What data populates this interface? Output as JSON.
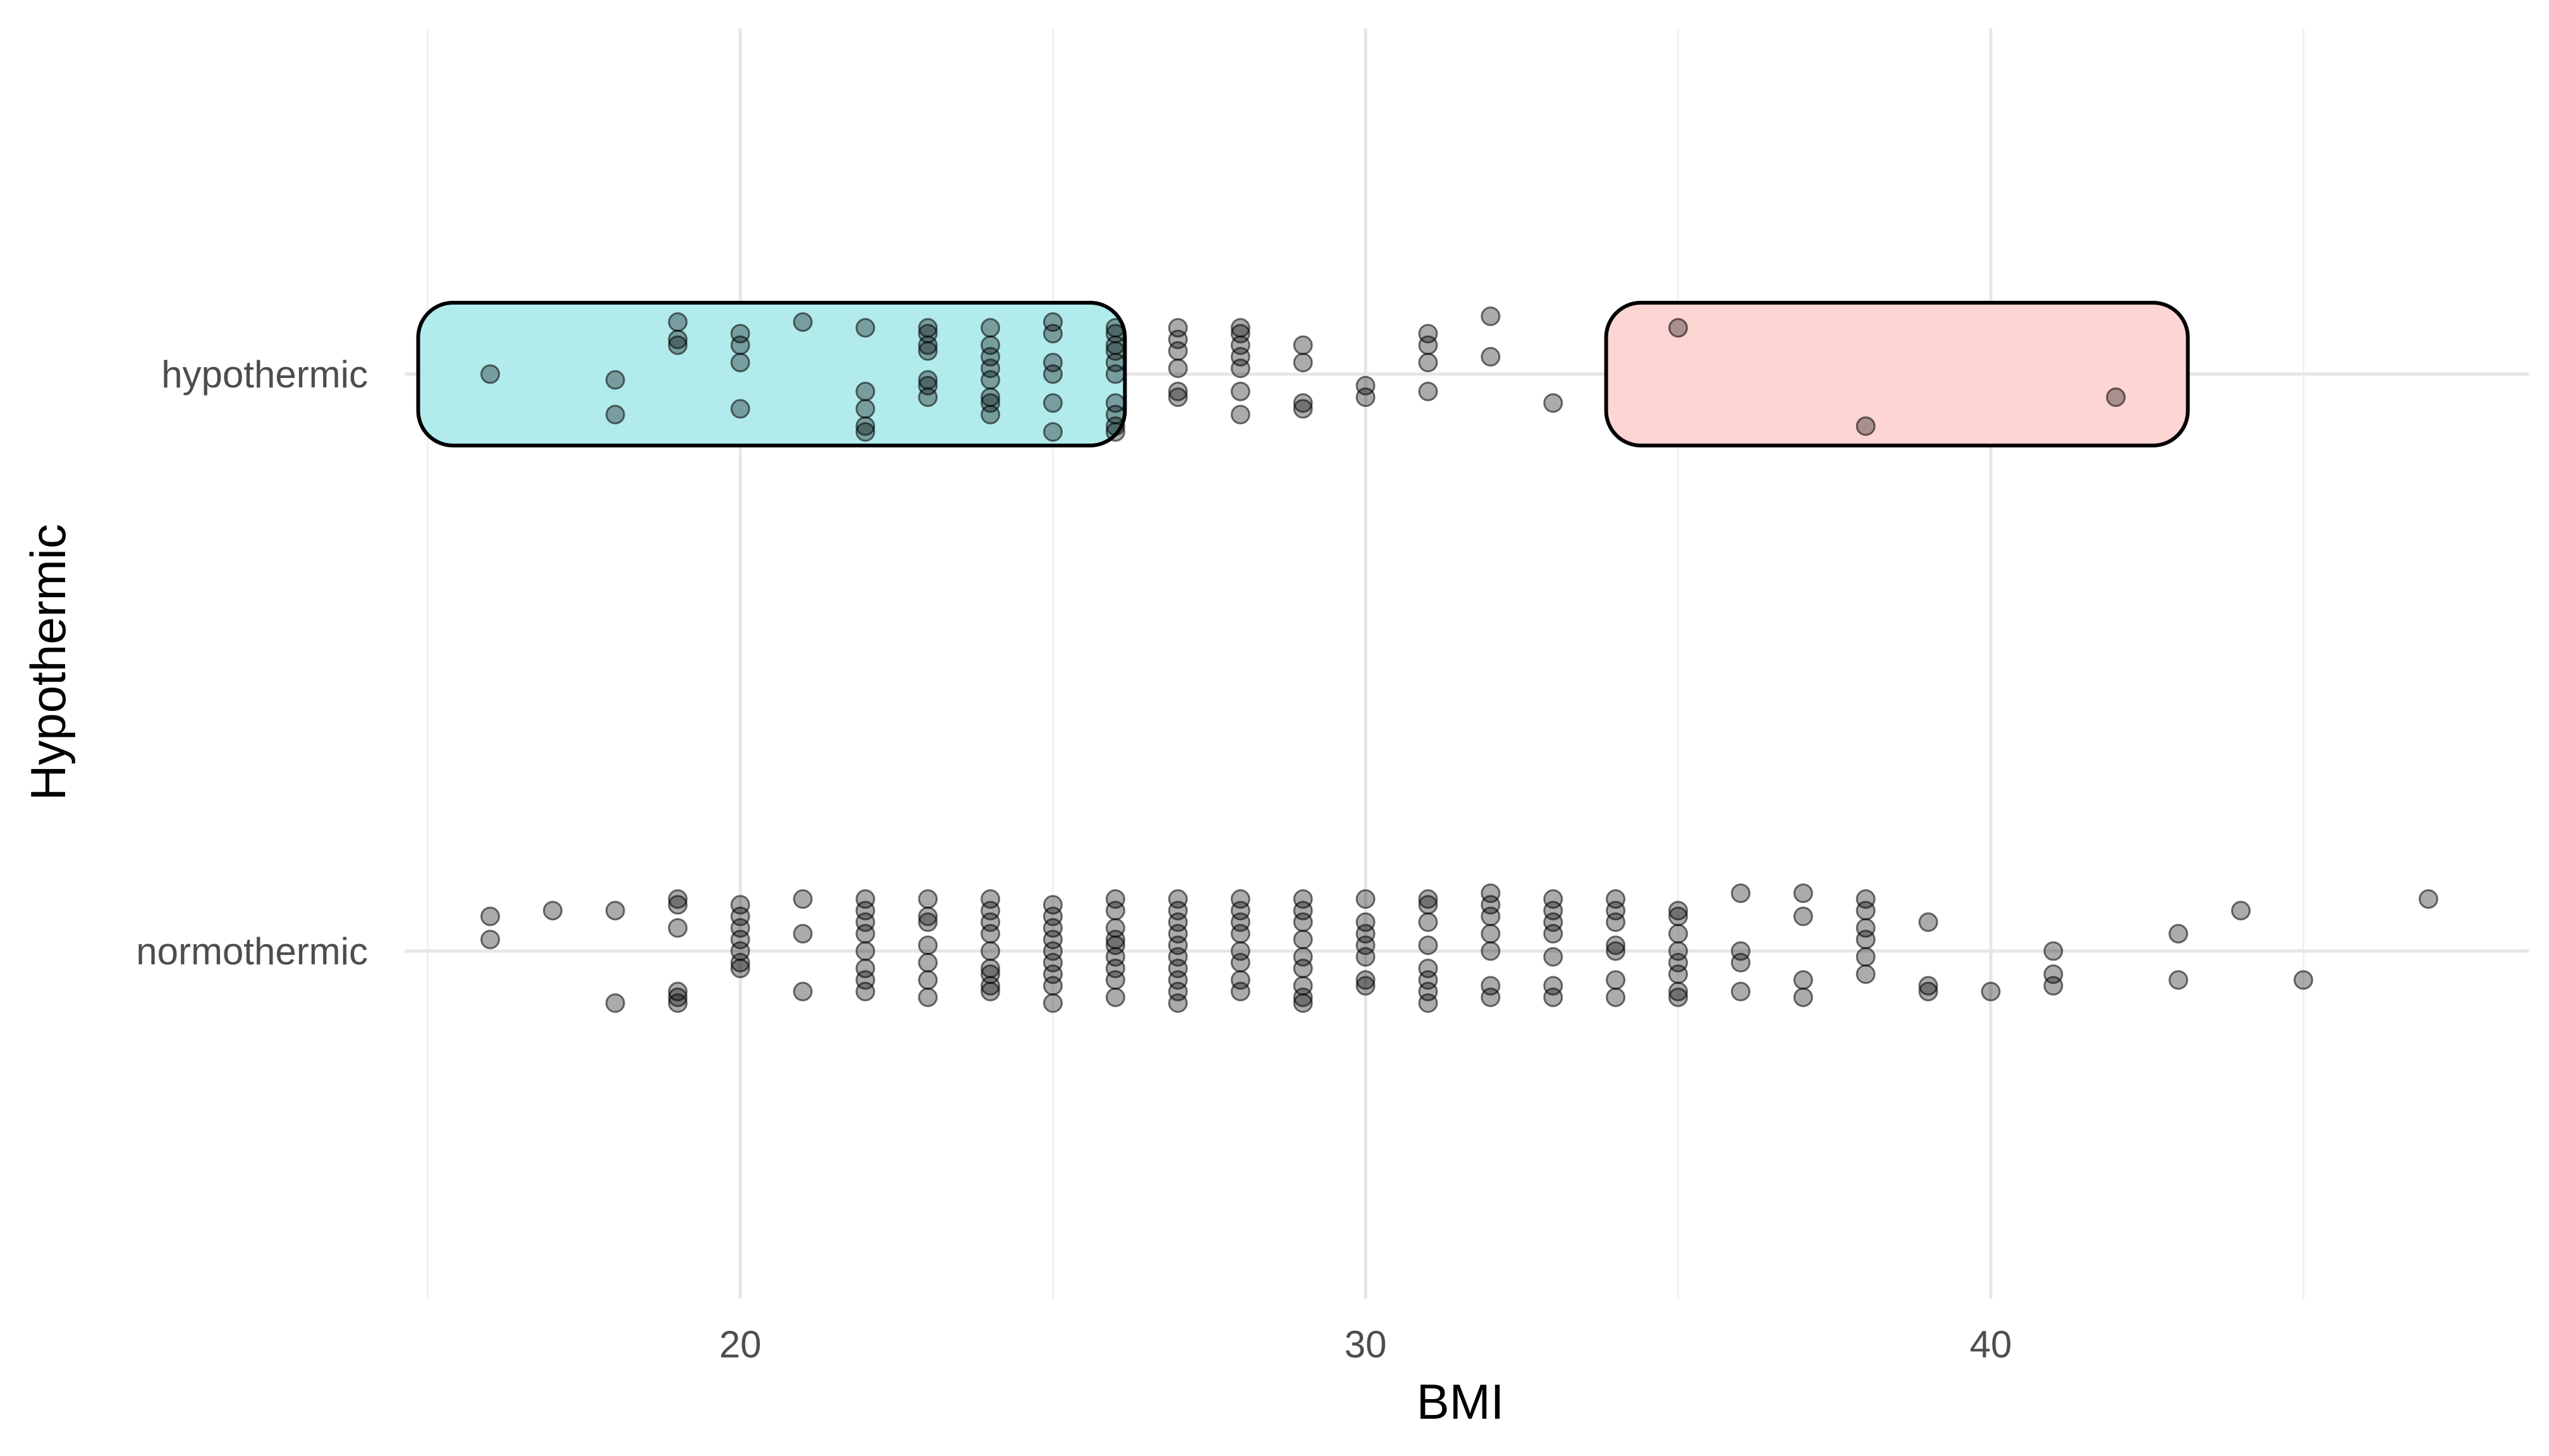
{
  "chart_data": {
    "type": "scatter",
    "title": "",
    "xlabel": "BMI",
    "ylabel": "Hypothermic",
    "xlim": [
      14.5,
      48.5
    ],
    "x_ticks": [
      20,
      30,
      40
    ],
    "x_tick_labels": [
      "20",
      "30",
      "40"
    ],
    "categories": [
      "hypothermic",
      "normothermic"
    ],
    "grid": true,
    "point_color": "#000000",
    "point_opacity": 0.33,
    "highlight_boxes": [
      {
        "category": "hypothermic",
        "x_range": [
          15,
          26
        ],
        "fill": "#b2ebec"
      },
      {
        "category": "hypothermic",
        "x_range": [
          34,
          43
        ],
        "fill": "#fdd5d3"
      }
    ],
    "series": [
      {
        "category": "hypothermic",
        "points": [
          [
            16,
            0.0
          ],
          [
            18,
            -0.01
          ],
          [
            18,
            -0.07
          ],
          [
            19,
            0.09
          ],
          [
            19,
            0.05
          ],
          [
            19,
            0.06
          ],
          [
            20,
            0.07
          ],
          [
            20,
            0.05
          ],
          [
            20,
            0.02
          ],
          [
            20,
            -0.06
          ],
          [
            21,
            0.09
          ],
          [
            22,
            0.08
          ],
          [
            22,
            -0.03
          ],
          [
            22,
            -0.06
          ],
          [
            22,
            -0.09
          ],
          [
            22,
            -0.1
          ],
          [
            23,
            0.08
          ],
          [
            23,
            0.07
          ],
          [
            23,
            0.05
          ],
          [
            23,
            0.04
          ],
          [
            23,
            -0.01
          ],
          [
            23,
            -0.02
          ],
          [
            23,
            -0.04
          ],
          [
            24,
            0.08
          ],
          [
            24,
            0.05
          ],
          [
            24,
            0.03
          ],
          [
            24,
            0.01
          ],
          [
            24,
            -0.01
          ],
          [
            24,
            -0.04
          ],
          [
            24,
            -0.05
          ],
          [
            24,
            -0.07
          ],
          [
            25,
            0.09
          ],
          [
            25,
            0.07
          ],
          [
            25,
            0.02
          ],
          [
            25,
            0.0
          ],
          [
            25,
            -0.05
          ],
          [
            25,
            -0.1
          ],
          [
            26,
            0.08
          ],
          [
            26,
            0.07
          ],
          [
            26,
            0.05
          ],
          [
            26,
            0.04
          ],
          [
            26,
            0.02
          ],
          [
            26,
            0.0
          ],
          [
            26,
            -0.05
          ],
          [
            26,
            -0.07
          ],
          [
            26,
            -0.09
          ],
          [
            26,
            -0.1
          ],
          [
            27,
            0.08
          ],
          [
            27,
            0.06
          ],
          [
            27,
            0.04
          ],
          [
            27,
            0.01
          ],
          [
            27,
            -0.03
          ],
          [
            27,
            -0.04
          ],
          [
            28,
            0.08
          ],
          [
            28,
            0.07
          ],
          [
            28,
            0.05
          ],
          [
            28,
            0.03
          ],
          [
            28,
            0.01
          ],
          [
            28,
            -0.03
          ],
          [
            28,
            -0.07
          ],
          [
            29,
            0.05
          ],
          [
            29,
            0.02
          ],
          [
            29,
            -0.05
          ],
          [
            29,
            -0.06
          ],
          [
            30,
            -0.02
          ],
          [
            30,
            -0.04
          ],
          [
            31,
            0.07
          ],
          [
            31,
            0.05
          ],
          [
            31,
            0.02
          ],
          [
            31,
            -0.03
          ],
          [
            32,
            0.1
          ],
          [
            32,
            0.03
          ],
          [
            33,
            -0.05
          ],
          [
            35,
            0.08
          ],
          [
            38,
            -0.09
          ],
          [
            42,
            -0.04
          ]
        ]
      },
      {
        "category": "normothermic",
        "points": [
          [
            16,
            0.06
          ],
          [
            16,
            0.02
          ],
          [
            17,
            0.07
          ],
          [
            18,
            0.07
          ],
          [
            18,
            -0.09
          ],
          [
            19,
            0.09
          ],
          [
            19,
            0.08
          ],
          [
            19,
            0.04
          ],
          [
            19,
            -0.07
          ],
          [
            19,
            -0.08
          ],
          [
            19,
            -0.09
          ],
          [
            20,
            0.08
          ],
          [
            20,
            0.06
          ],
          [
            20,
            0.04
          ],
          [
            20,
            0.02
          ],
          [
            20,
            0.0
          ],
          [
            20,
            -0.02
          ],
          [
            20,
            -0.03
          ],
          [
            21,
            0.09
          ],
          [
            21,
            0.03
          ],
          [
            21,
            -0.07
          ],
          [
            22,
            0.09
          ],
          [
            22,
            0.07
          ],
          [
            22,
            0.05
          ],
          [
            22,
            0.03
          ],
          [
            22,
            0.0
          ],
          [
            22,
            -0.03
          ],
          [
            22,
            -0.05
          ],
          [
            22,
            -0.07
          ],
          [
            23,
            0.09
          ],
          [
            23,
            0.06
          ],
          [
            23,
            0.05
          ],
          [
            23,
            0.01
          ],
          [
            23,
            -0.02
          ],
          [
            23,
            -0.05
          ],
          [
            23,
            -0.08
          ],
          [
            24,
            0.09
          ],
          [
            24,
            0.07
          ],
          [
            24,
            0.05
          ],
          [
            24,
            0.03
          ],
          [
            24,
            0.0
          ],
          [
            24,
            -0.03
          ],
          [
            24,
            -0.04
          ],
          [
            24,
            -0.06
          ],
          [
            24,
            -0.07
          ],
          [
            25,
            0.08
          ],
          [
            25,
            0.06
          ],
          [
            25,
            0.04
          ],
          [
            25,
            0.02
          ],
          [
            25,
            0.0
          ],
          [
            25,
            -0.02
          ],
          [
            25,
            -0.04
          ],
          [
            25,
            -0.06
          ],
          [
            25,
            -0.09
          ],
          [
            26,
            0.09
          ],
          [
            26,
            0.07
          ],
          [
            26,
            0.04
          ],
          [
            26,
            0.02
          ],
          [
            26,
            0.01
          ],
          [
            26,
            -0.01
          ],
          [
            26,
            -0.03
          ],
          [
            26,
            -0.05
          ],
          [
            26,
            -0.08
          ],
          [
            27,
            0.09
          ],
          [
            27,
            0.07
          ],
          [
            27,
            0.05
          ],
          [
            27,
            0.03
          ],
          [
            27,
            0.01
          ],
          [
            27,
            -0.01
          ],
          [
            27,
            -0.03
          ],
          [
            27,
            -0.05
          ],
          [
            27,
            -0.07
          ],
          [
            27,
            -0.09
          ],
          [
            28,
            0.09
          ],
          [
            28,
            0.07
          ],
          [
            28,
            0.05
          ],
          [
            28,
            0.03
          ],
          [
            28,
            0.0
          ],
          [
            28,
            -0.02
          ],
          [
            28,
            -0.05
          ],
          [
            28,
            -0.07
          ],
          [
            29,
            0.09
          ],
          [
            29,
            0.07
          ],
          [
            29,
            0.05
          ],
          [
            29,
            0.02
          ],
          [
            29,
            -0.01
          ],
          [
            29,
            -0.03
          ],
          [
            29,
            -0.06
          ],
          [
            29,
            -0.08
          ],
          [
            29,
            -0.09
          ],
          [
            30,
            0.09
          ],
          [
            30,
            0.05
          ],
          [
            30,
            0.03
          ],
          [
            30,
            0.01
          ],
          [
            30,
            -0.01
          ],
          [
            30,
            -0.05
          ],
          [
            30,
            -0.06
          ],
          [
            31,
            0.09
          ],
          [
            31,
            0.08
          ],
          [
            31,
            0.05
          ],
          [
            31,
            0.01
          ],
          [
            31,
            -0.03
          ],
          [
            31,
            -0.05
          ],
          [
            31,
            -0.07
          ],
          [
            31,
            -0.09
          ],
          [
            32,
            0.1
          ],
          [
            32,
            0.08
          ],
          [
            32,
            0.06
          ],
          [
            32,
            0.03
          ],
          [
            32,
            0.0
          ],
          [
            32,
            -0.06
          ],
          [
            32,
            -0.08
          ],
          [
            33,
            0.09
          ],
          [
            33,
            0.07
          ],
          [
            33,
            0.05
          ],
          [
            33,
            0.03
          ],
          [
            33,
            -0.01
          ],
          [
            33,
            -0.06
          ],
          [
            33,
            -0.08
          ],
          [
            34,
            0.09
          ],
          [
            34,
            0.07
          ],
          [
            34,
            0.05
          ],
          [
            34,
            0.01
          ],
          [
            34,
            0.0
          ],
          [
            34,
            -0.05
          ],
          [
            34,
            -0.08
          ],
          [
            35,
            0.07
          ],
          [
            35,
            0.06
          ],
          [
            35,
            0.03
          ],
          [
            35,
            0.0
          ],
          [
            35,
            -0.02
          ],
          [
            35,
            -0.04
          ],
          [
            35,
            -0.07
          ],
          [
            35,
            -0.08
          ],
          [
            36,
            0.1
          ],
          [
            36,
            0.0
          ],
          [
            36,
            -0.02
          ],
          [
            36,
            -0.07
          ],
          [
            37,
            0.1
          ],
          [
            37,
            0.06
          ],
          [
            37,
            -0.05
          ],
          [
            37,
            -0.08
          ],
          [
            38,
            0.09
          ],
          [
            38,
            0.07
          ],
          [
            38,
            0.04
          ],
          [
            38,
            0.02
          ],
          [
            38,
            -0.01
          ],
          [
            38,
            -0.04
          ],
          [
            39,
            0.05
          ],
          [
            39,
            -0.06
          ],
          [
            39,
            -0.07
          ],
          [
            40,
            -0.07
          ],
          [
            41,
            0.0
          ],
          [
            41,
            -0.04
          ],
          [
            41,
            -0.06
          ],
          [
            43,
            0.03
          ],
          [
            43,
            -0.05
          ],
          [
            44,
            0.07
          ],
          [
            45,
            -0.05
          ],
          [
            47,
            0.09
          ]
        ]
      }
    ]
  }
}
